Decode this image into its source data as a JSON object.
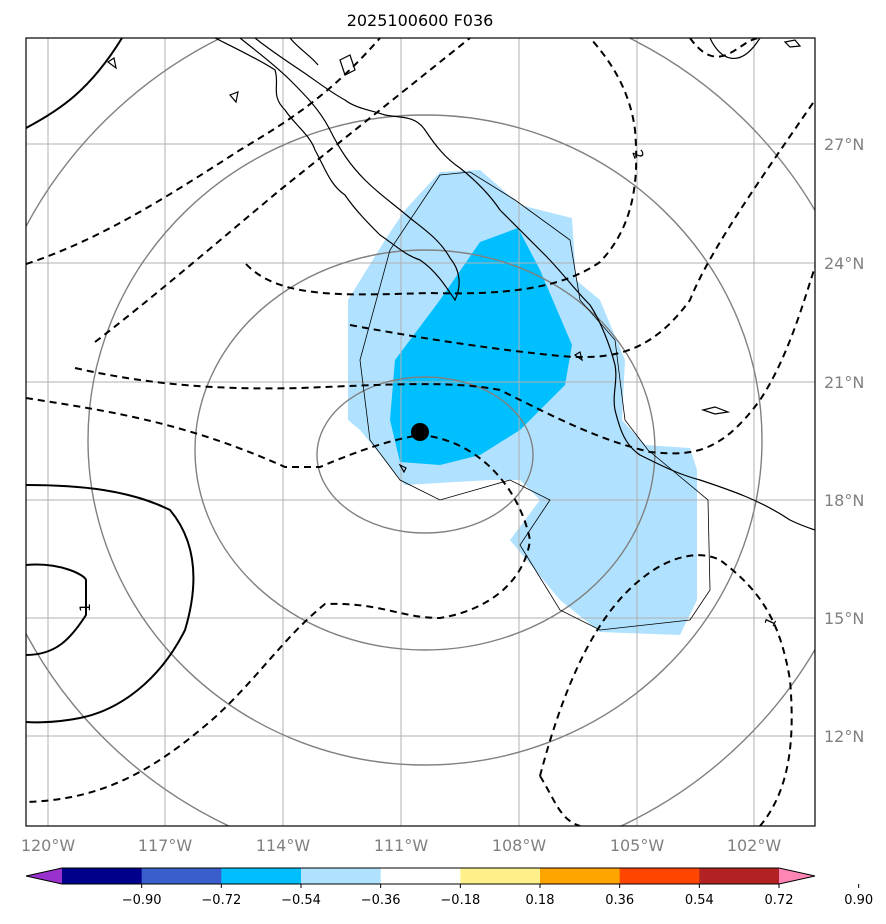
{
  "title": "2025100600 F036",
  "map": {
    "lon_labels": [
      "120°W",
      "117°W",
      "114°W",
      "111°W",
      "108°W",
      "105°W",
      "102°W"
    ],
    "lat_labels": [
      "27°N",
      "24°N",
      "21°N",
      "18°N",
      "15°N",
      "12°N"
    ],
    "center_marker": {
      "lon": -110.6,
      "lat": 19.6
    },
    "contour_labels": [
      "2",
      "1",
      "1"
    ]
  },
  "colorbar": {
    "ticks": [
      "−0.90",
      "−0.72",
      "−0.54",
      "−0.36",
      "−0.18",
      "0.18",
      "0.36",
      "0.54",
      "0.72",
      "0.90"
    ],
    "colors": [
      "#9932cc",
      "#00008b",
      "#3a5fcd",
      "#00bfff",
      "#b0e2ff",
      "#ffffff",
      "#fff08c",
      "#ffa500",
      "#ff4500",
      "#b22222",
      "#ff86b4"
    ]
  },
  "colors": {
    "fill_light": "#b0e2ff",
    "fill_dark": "#00bfff",
    "grid": "#b0b0b0",
    "gray_contour": "#808080"
  }
}
